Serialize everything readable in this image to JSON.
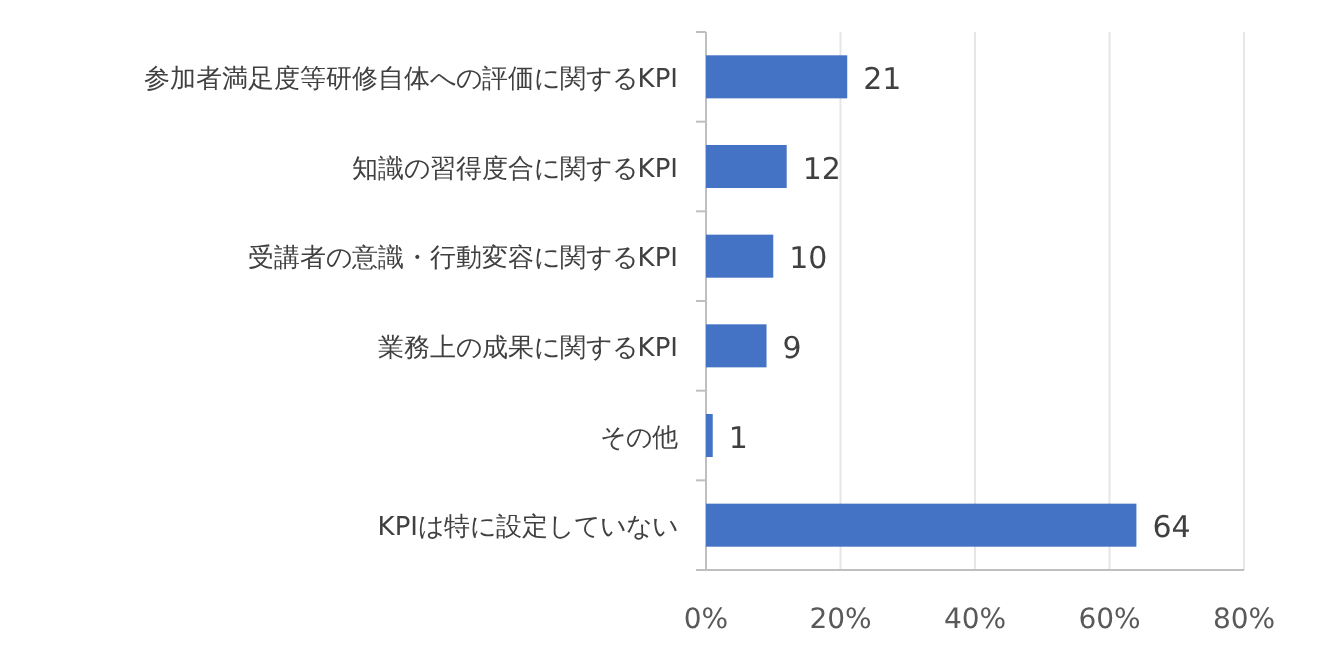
{
  "chart_data": {
    "type": "bar",
    "orientation": "horizontal",
    "categories": [
      "参加者満足度等研修自体への評価に関するKPI",
      "知識の習得度合に関するKPI",
      "受講者の意識・行動変容に関するKPI",
      "業務上の成果に関するKPI",
      "その他",
      "KPIは特に設定していない"
    ],
    "values": [
      21,
      12,
      10,
      9,
      1,
      64
    ],
    "color": "#4472c4",
    "data_labels": true,
    "grid": "x",
    "xlim": [
      0,
      80
    ],
    "xticks": [
      {
        "value": 0,
        "label": "0%"
      },
      {
        "value": 20,
        "label": "20%"
      },
      {
        "value": 40,
        "label": "40%"
      },
      {
        "value": 60,
        "label": "60%"
      },
      {
        "value": 80,
        "label": "80%"
      }
    ]
  }
}
